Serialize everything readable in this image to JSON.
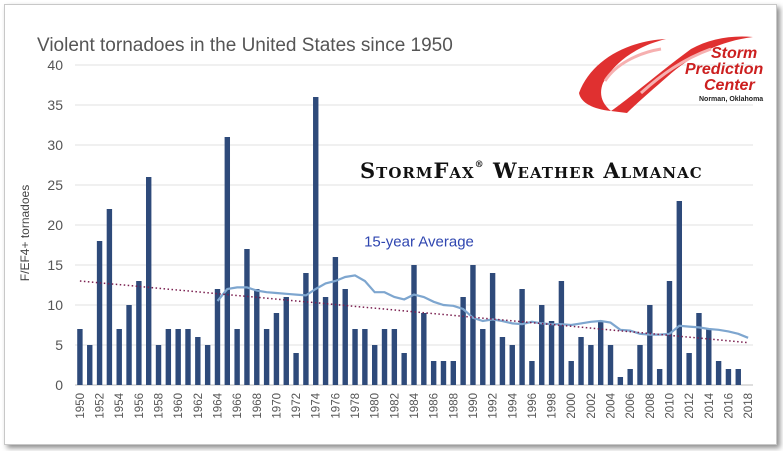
{
  "chart_data": {
    "type": "bar",
    "title": "Violent tornadoes in the United States since 1950",
    "ylabel": "F/EF4+ tornadoes",
    "xlabel": "",
    "ylim": [
      0,
      40
    ],
    "yticks": [
      0,
      5,
      10,
      15,
      20,
      25,
      30,
      35,
      40
    ],
    "grid": true,
    "bar_color": "#2e4a7a",
    "x": [
      1950,
      1951,
      1952,
      1953,
      1954,
      1955,
      1956,
      1957,
      1958,
      1959,
      1960,
      1961,
      1962,
      1963,
      1964,
      1965,
      1966,
      1967,
      1968,
      1969,
      1970,
      1971,
      1972,
      1973,
      1974,
      1975,
      1976,
      1977,
      1978,
      1979,
      1980,
      1981,
      1982,
      1983,
      1984,
      1985,
      1986,
      1987,
      1988,
      1989,
      1990,
      1991,
      1992,
      1993,
      1994,
      1995,
      1996,
      1997,
      1998,
      1999,
      2000,
      2001,
      2002,
      2003,
      2004,
      2005,
      2006,
      2007,
      2008,
      2009,
      2010,
      2011,
      2012,
      2013,
      2014,
      2015,
      2016,
      2017,
      2018
    ],
    "values": [
      7,
      5,
      18,
      22,
      7,
      10,
      13,
      26,
      5,
      7,
      7,
      7,
      6,
      5,
      12,
      31,
      7,
      17,
      12,
      7,
      9,
      11,
      4,
      14,
      36,
      11,
      16,
      12,
      7,
      7,
      5,
      7,
      7,
      4,
      15,
      9,
      3,
      3,
      3,
      11,
      15,
      7,
      14,
      6,
      5,
      12,
      3,
      10,
      8,
      13,
      3,
      6,
      5,
      8,
      5,
      1,
      2,
      5,
      10,
      2,
      13,
      23,
      4,
      9,
      7,
      3,
      2,
      2,
      0
    ],
    "tick_labels": [
      "1950",
      "1952",
      "1954",
      "1956",
      "1958",
      "1960",
      "1962",
      "1964",
      "1966",
      "1968",
      "1970",
      "1972",
      "1974",
      "1976",
      "1978",
      "1980",
      "1982",
      "1984",
      "1986",
      "1988",
      "1990",
      "1992",
      "1994",
      "1996",
      "1998",
      "2000",
      "2002",
      "2004",
      "2006",
      "2008",
      "2010",
      "2012",
      "2014",
      "2016",
      "2018"
    ],
    "series": [
      {
        "name": "15-year Average",
        "type": "line",
        "color": "#7ea6cf",
        "x": [
          1964,
          1965,
          1966,
          1967,
          1968,
          1969,
          1970,
          1971,
          1972,
          1973,
          1974,
          1975,
          1976,
          1977,
          1978,
          1979,
          1980,
          1981,
          1982,
          1983,
          1984,
          1985,
          1986,
          1987,
          1988,
          1989,
          1990,
          1991,
          1992,
          1993,
          1994,
          1995,
          1996,
          1997,
          1998,
          1999,
          2000,
          2001,
          2002,
          2003,
          2004,
          2005,
          2006,
          2007,
          2008,
          2009,
          2010,
          2011,
          2012,
          2013,
          2014,
          2015,
          2016,
          2017,
          2018
        ],
        "values": [
          10.5,
          12.0,
          12.2,
          12.2,
          11.8,
          11.6,
          11.5,
          11.4,
          11.3,
          11.2,
          12.0,
          12.7,
          13.0,
          13.5,
          13.7,
          13.0,
          11.6,
          11.6,
          11.0,
          10.7,
          11.3,
          11.0,
          10.4,
          10.0,
          9.9,
          9.5,
          8.4,
          8.0,
          8.2,
          8.0,
          7.7,
          7.6,
          7.9,
          7.7,
          7.6,
          7.6,
          7.5,
          7.7,
          7.9,
          8.0,
          7.8,
          6.9,
          6.8,
          6.4,
          6.3,
          6.3,
          6.4,
          7.4,
          7.3,
          7.2,
          7.0,
          6.9,
          6.7,
          6.4,
          5.9
        ]
      },
      {
        "name": "",
        "type": "trend",
        "style": "dotted",
        "color": "#7a1f4f",
        "x": [
          1950,
          2018
        ],
        "values": [
          13.0,
          5.3
        ]
      }
    ],
    "annotations": [
      {
        "text": "15-year Average",
        "x": 1983.5,
        "y": 17.8,
        "color": "#2f46b0"
      }
    ]
  },
  "overlay": {
    "almanac_main": "StormFax",
    "almanac_reg": "®",
    "almanac_rest": " Weather Almanac"
  },
  "logo": {
    "line1": "Storm",
    "line2": "Prediction",
    "line3": "Center",
    "line4": "Norman, Oklahoma",
    "color": "#cc1f1f"
  }
}
